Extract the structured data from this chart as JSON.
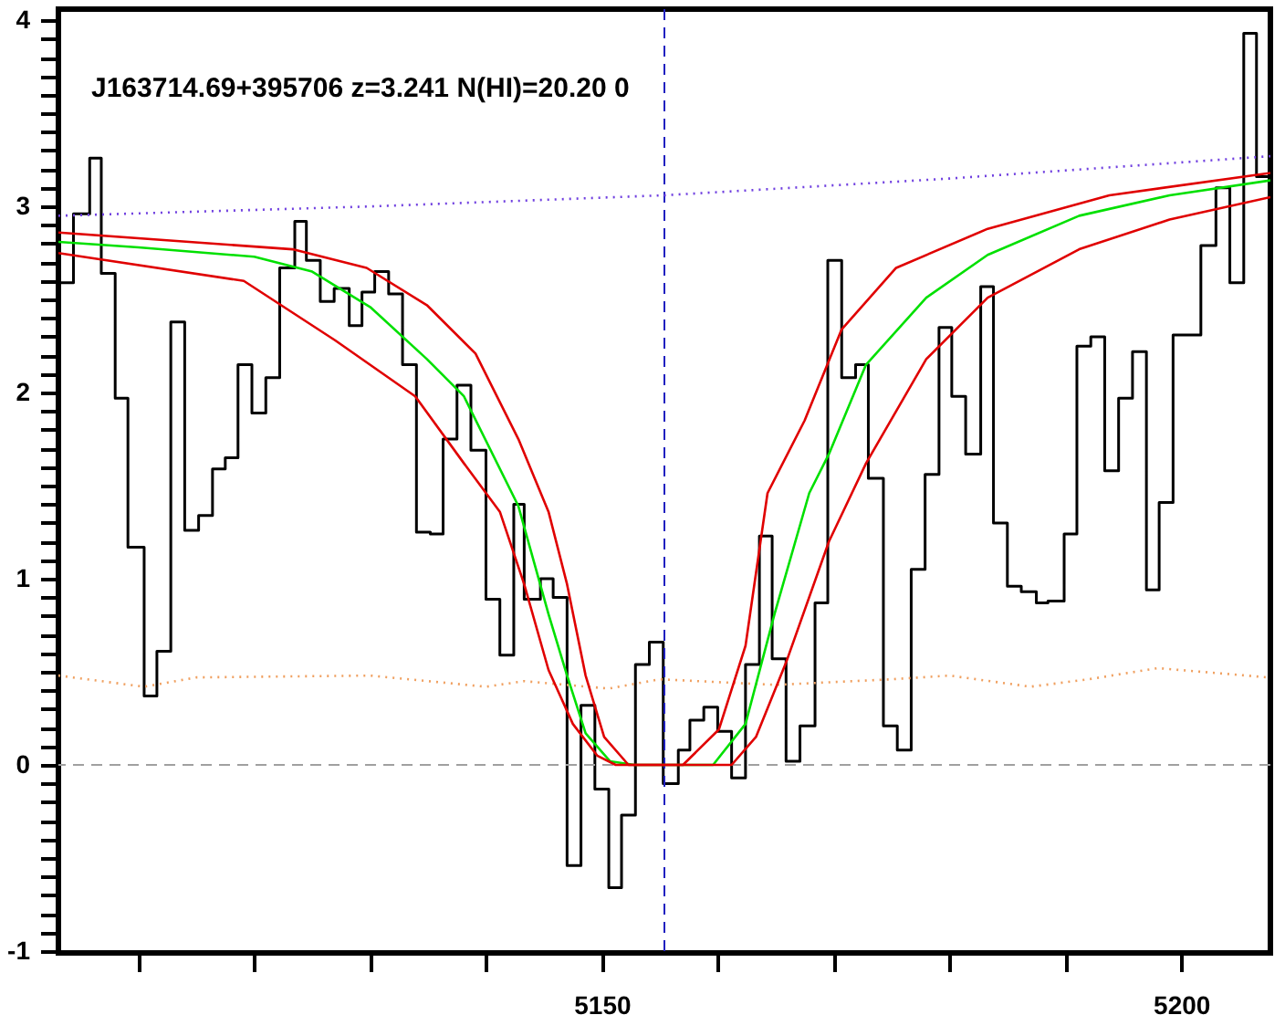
{
  "chart_data": {
    "type": "step",
    "title": "J163714.69+395706 z=3.241 N(HI)=20.20 0",
    "xlim": [
      5103.1,
      5207.7
    ],
    "ylim": [
      -1.01,
      4.06
    ],
    "xticks": [
      {
        "value": 5110,
        "label": null
      },
      {
        "value": 5120,
        "label": null
      },
      {
        "value": 5130,
        "label": null
      },
      {
        "value": 5140,
        "label": null
      },
      5150,
      {
        "value": 5160,
        "label": null
      },
      {
        "value": 5170,
        "label": null
      },
      {
        "value": 5180,
        "label": null
      },
      {
        "value": 5190,
        "label": null
      },
      5200
    ],
    "yticks": [
      -1,
      {
        "value": -0.9,
        "label": null
      },
      {
        "value": -0.8,
        "label": null
      },
      {
        "value": -0.7,
        "label": null
      },
      {
        "value": -0.6,
        "label": null
      },
      {
        "value": -0.5,
        "label": null
      },
      {
        "value": -0.4,
        "label": null
      },
      {
        "value": -0.3,
        "label": null
      },
      {
        "value": -0.2,
        "label": null
      },
      {
        "value": -0.1,
        "label": null
      },
      0,
      {
        "value": 0.1,
        "label": null
      },
      {
        "value": 0.2,
        "label": null
      },
      {
        "value": 0.3,
        "label": null
      },
      {
        "value": 0.4,
        "label": null
      },
      {
        "value": 0.5,
        "label": null
      },
      {
        "value": 0.6,
        "label": null
      },
      {
        "value": 0.7,
        "label": null
      },
      {
        "value": 0.8,
        "label": null
      },
      {
        "value": 0.9,
        "label": null
      },
      1,
      {
        "value": 1.1,
        "label": null
      },
      {
        "value": 1.2,
        "label": null
      },
      {
        "value": 1.3,
        "label": null
      },
      {
        "value": 1.4,
        "label": null
      },
      {
        "value": 1.5,
        "label": null
      },
      {
        "value": 1.6,
        "label": null
      },
      {
        "value": 1.7,
        "label": null
      },
      {
        "value": 1.8,
        "label": null
      },
      {
        "value": 1.9,
        "label": null
      },
      2,
      {
        "value": 2.1,
        "label": null
      },
      {
        "value": 2.2,
        "label": null
      },
      {
        "value": 2.3,
        "label": null
      },
      {
        "value": 2.4,
        "label": null
      },
      {
        "value": 2.5,
        "label": null
      },
      {
        "value": 2.6,
        "label": null
      },
      {
        "value": 2.7,
        "label": null
      },
      {
        "value": 2.8,
        "label": null
      },
      {
        "value": 2.9,
        "label": null
      },
      3,
      {
        "value": 3.1,
        "label": null
      },
      {
        "value": 3.2,
        "label": null
      },
      {
        "value": 3.3,
        "label": null
      },
      {
        "value": 3.4,
        "label": null
      },
      {
        "value": 3.5,
        "label": null
      },
      {
        "value": 3.6,
        "label": null
      },
      {
        "value": 3.7,
        "label": null
      },
      {
        "value": 3.8,
        "label": null
      },
      {
        "value": 3.9,
        "label": null
      },
      4
    ],
    "grid": false,
    "ref_lines": [
      {
        "axis": "y",
        "value": 0,
        "color": "#a0a0a0",
        "line_style": "dashed"
      },
      {
        "axis": "x",
        "value": 5155.4,
        "color": "#2020c0",
        "line_style": "dashed"
      }
    ],
    "series": [
      {
        "type": "step",
        "color": "#000000",
        "x": [
          5103.1,
          5104.4,
          5105.8,
          5106.8,
          5108.0,
          5109.1,
          5110.5,
          5111.6,
          5112.8,
          5114.0,
          5115.2,
          5116.4,
          5117.5,
          5118.6,
          5119.8,
          5121.0,
          5122.2,
          5123.5,
          5124.5,
          5125.7,
          5126.9,
          5128.2,
          5129.3,
          5130.4,
          5131.6,
          5132.8,
          5134.0,
          5135.2,
          5136.3,
          5137.5,
          5138.7,
          5140.0,
          5141.2,
          5142.4,
          5143.3,
          5144.7,
          5145.8,
          5147.0,
          5148.2,
          5149.4,
          5150.6,
          5151.7,
          5152.9,
          5154.1,
          5155.3,
          5156.6,
          5157.6,
          5158.8,
          5160.0,
          5161.2,
          5162.4,
          5163.6,
          5164.7,
          5165.9,
          5167.1,
          5168.4,
          5169.5,
          5170.7,
          5171.9,
          5173.0,
          5174.3,
          5175.5,
          5176.7,
          5177.9,
          5179.1,
          5180.2,
          5181.4,
          5182.7,
          5183.8,
          5185.0,
          5186.2,
          5187.5,
          5188.5,
          5189.9,
          5191.0,
          5192.2,
          5193.4,
          5194.6,
          5195.8,
          5197.0,
          5198.1,
          5199.3,
          5201.7,
          5203.0,
          5204.2,
          5205.4,
          5206.5,
          5207.5
        ],
        "values": [
          2.59,
          2.96,
          3.26,
          2.64,
          1.97,
          1.17,
          0.37,
          0.61,
          2.38,
          1.26,
          1.34,
          1.59,
          1.65,
          2.15,
          1.89,
          2.08,
          2.67,
          2.92,
          2.71,
          2.49,
          2.56,
          2.36,
          2.54,
          2.65,
          2.53,
          2.15,
          1.25,
          1.24,
          1.75,
          2.04,
          1.69,
          0.89,
          0.59,
          1.4,
          0.89,
          1.0,
          0.9,
          -0.54,
          0.32,
          -0.13,
          -0.66,
          -0.27,
          0.54,
          0.66,
          -0.1,
          0.08,
          0.24,
          0.31,
          0.18,
          -0.07,
          0.54,
          1.23,
          0.57,
          0.02,
          0.21,
          0.87,
          2.71,
          2.08,
          2.15,
          1.54,
          0.21,
          0.08,
          1.05,
          1.56,
          2.35,
          1.98,
          1.67,
          2.57,
          1.3,
          0.96,
          0.93,
          0.87,
          0.88,
          1.24,
          2.25,
          2.3,
          1.58,
          1.97,
          2.22,
          0.94,
          1.41,
          2.31,
          2.79,
          3.1,
          2.59,
          3.93,
          3.16,
          3.16
        ]
      },
      {
        "type": "line",
        "color": "#7040e0",
        "line_style": "dotted",
        "x": [
          5103.1,
          5130,
          5155.4,
          5180,
          5207.7
        ],
        "values": [
          2.95,
          3.0,
          3.06,
          3.15,
          3.27
        ]
      },
      {
        "type": "line",
        "color": "#f0a060",
        "line_style": "dotted",
        "x": [
          5103.1,
          5110.5,
          5115,
          5130,
          5140,
          5143.3,
          5150.6,
          5155,
          5165,
          5175,
          5180,
          5187,
          5192,
          5198,
          5207.5
        ],
        "values": [
          0.48,
          0.42,
          0.47,
          0.48,
          0.42,
          0.45,
          0.41,
          0.46,
          0.43,
          0.46,
          0.48,
          0.42,
          0.46,
          0.52,
          0.47
        ]
      },
      {
        "type": "line",
        "color": "#00e000",
        "x": [
          5103.1,
          5110,
          5120,
          5125,
          5130,
          5134.9,
          5138.1,
          5142.8,
          5145.4,
          5147,
          5148.6,
          5150.7,
          5152.8,
          5155.4,
          5159.6,
          5162.4,
          5164.9,
          5167.9,
          5169.6,
          5172.8,
          5178,
          5183.3,
          5191.2,
          5199,
          5207.7
        ],
        "values": [
          2.81,
          2.78,
          2.73,
          2.65,
          2.46,
          2.18,
          1.98,
          1.39,
          0.81,
          0.48,
          0.17,
          0.02,
          0,
          0,
          0,
          0.22,
          0.81,
          1.46,
          1.67,
          2.15,
          2.51,
          2.74,
          2.95,
          3.06,
          3.14
        ]
      },
      {
        "type": "line",
        "color": "#e00000",
        "x": [
          5103.1,
          5123.3,
          5129.7,
          5134.9,
          5139.1,
          5142.8,
          5145.4,
          5147,
          5148.6,
          5150.2,
          5152.3,
          5155.4,
          5157,
          5160.1,
          5162.4,
          5164.3,
          5167.5,
          5170.7,
          5175.4,
          5183.3,
          5193.8,
          5207.7
        ],
        "values": [
          2.86,
          2.77,
          2.67,
          2.47,
          2.21,
          1.75,
          1.36,
          0.97,
          0.48,
          0.15,
          0,
          0,
          0,
          0.19,
          0.64,
          1.46,
          1.85,
          2.34,
          2.67,
          2.88,
          3.06,
          3.18
        ]
      },
      {
        "type": "line",
        "color": "#e00000",
        "x": [
          5103.1,
          5119.1,
          5127,
          5133.9,
          5138.1,
          5141.2,
          5143.3,
          5145.4,
          5147.5,
          5149.6,
          5151.2,
          5155.4,
          5161.2,
          5163.3,
          5165.9,
          5169.6,
          5172.8,
          5178,
          5183.3,
          5191.2,
          5199,
          5207.7
        ],
        "values": [
          2.75,
          2.6,
          2.28,
          1.98,
          1.62,
          1.36,
          0.97,
          0.51,
          0.22,
          0.05,
          0,
          0,
          0,
          0.15,
          0.55,
          1.2,
          1.62,
          2.18,
          2.51,
          2.77,
          2.93,
          3.05
        ]
      }
    ]
  }
}
